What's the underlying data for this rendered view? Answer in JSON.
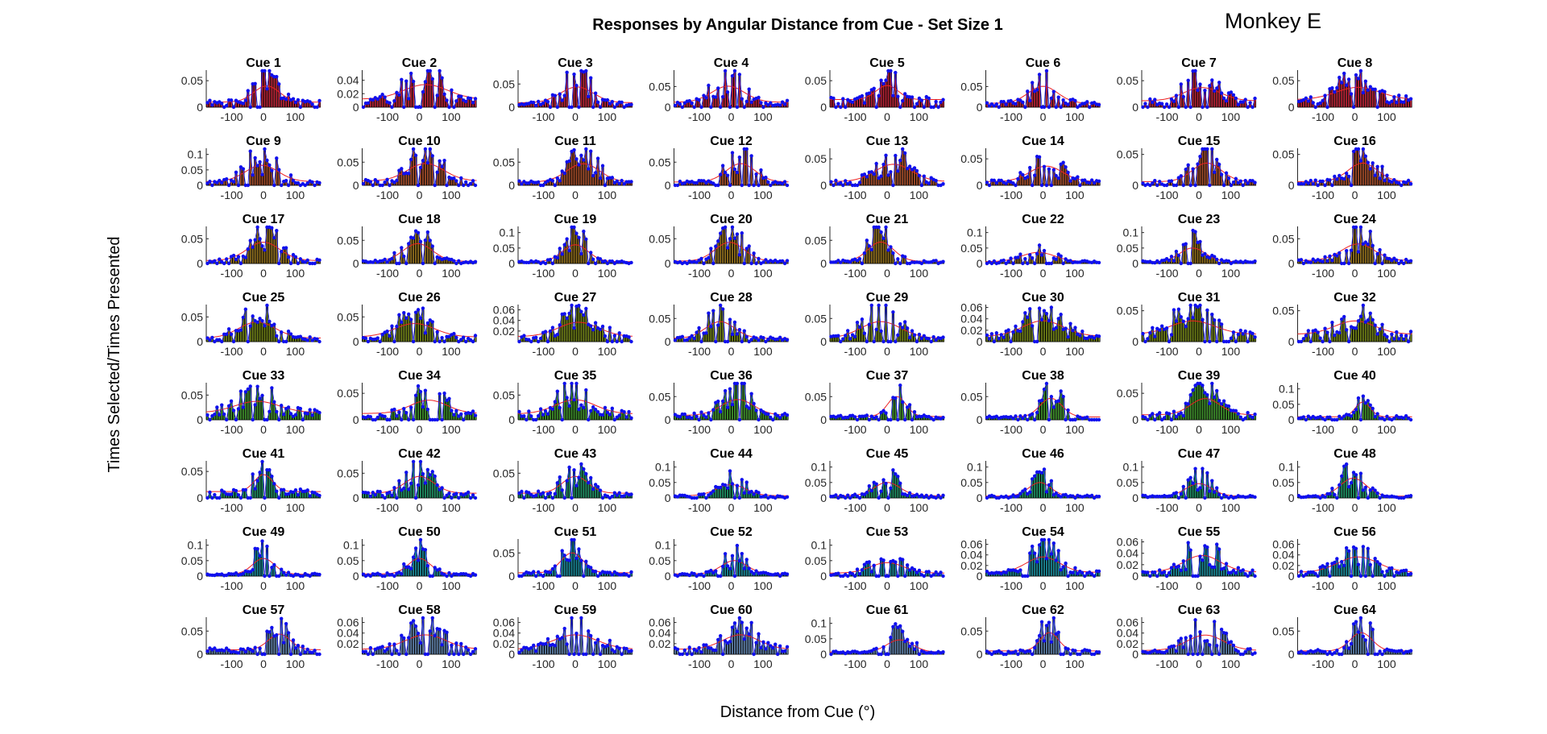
{
  "figure": {
    "title": "Responses by Angular Distance from Cue - Set Size 1",
    "corner_label": "Monkey E",
    "xlabel": "Distance from Cue (°)",
    "ylabel": "Times Selected/Times Presented"
  },
  "colors": {
    "bar_edge": "#000000",
    "marker": "#1010ee",
    "fit_line": "#ee2020",
    "axis": "#262626",
    "palette": [
      "#b22234",
      "#9c4a28",
      "#8a6a1c",
      "#6a7a16",
      "#3c8a2a",
      "#1e8a60",
      "#1a8492",
      "#5a7aa0"
    ]
  },
  "chart_data": {
    "type": "bar",
    "layout": {
      "rows": 8,
      "cols": 8
    },
    "xlim": [
      -180,
      180
    ],
    "xticks": [
      -100,
      0,
      100
    ],
    "panels": [
      {
        "title": "Cue 1",
        "ylim": [
          0,
          0.07
        ],
        "yticks": [
          0,
          0.05
        ],
        "peak": 0.055,
        "center": 10,
        "width": 35,
        "base": 0.008,
        "seed": 1
      },
      {
        "title": "Cue 2",
        "ylim": [
          0,
          0.055
        ],
        "yticks": [
          0,
          0.02,
          0.04
        ],
        "peak": 0.045,
        "center": 20,
        "width": 60,
        "base": 0.01,
        "seed": 2
      },
      {
        "title": "Cue 3",
        "ylim": [
          0,
          0.08
        ],
        "yticks": [
          0,
          0.05
        ],
        "peak": 0.06,
        "center": 5,
        "width": 45,
        "base": 0.008,
        "seed": 3
      },
      {
        "title": "Cue 4",
        "ylim": [
          0,
          0.09
        ],
        "yticks": [
          0,
          0.05
        ],
        "peak": 0.07,
        "center": -10,
        "width": 45,
        "base": 0.01,
        "seed": 4
      },
      {
        "title": "Cue 5",
        "ylim": [
          0,
          0.07
        ],
        "yticks": [
          0,
          0.05
        ],
        "peak": 0.055,
        "center": 0,
        "width": 30,
        "base": 0.012,
        "seed": 5
      },
      {
        "title": "Cue 6",
        "ylim": [
          0,
          0.09
        ],
        "yticks": [
          0,
          0.05
        ],
        "peak": 0.07,
        "center": 0,
        "width": 40,
        "base": 0.008,
        "seed": 6
      },
      {
        "title": "Cue 7",
        "ylim": [
          0,
          0.07
        ],
        "yticks": [
          0,
          0.05
        ],
        "peak": 0.05,
        "center": 10,
        "width": 50,
        "base": 0.01,
        "seed": 7
      },
      {
        "title": "Cue 8",
        "ylim": [
          0,
          0.07
        ],
        "yticks": [
          0,
          0.05
        ],
        "peak": 0.05,
        "center": 10,
        "width": 60,
        "base": 0.012,
        "seed": 8
      },
      {
        "title": "Cue 9",
        "ylim": [
          0,
          0.12
        ],
        "yticks": [
          0,
          0.05,
          0.1
        ],
        "peak": 0.09,
        "center": -5,
        "width": 45,
        "base": 0.01,
        "seed": 9
      },
      {
        "title": "Cue 10",
        "ylim": [
          0,
          0.08
        ],
        "yticks": [
          0,
          0.05
        ],
        "peak": 0.065,
        "center": 20,
        "width": 50,
        "base": 0.008,
        "seed": 10
      },
      {
        "title": "Cue 11",
        "ylim": [
          0,
          0.08
        ],
        "yticks": [
          0,
          0.05
        ],
        "peak": 0.065,
        "center": 25,
        "width": 45,
        "base": 0.006,
        "seed": 11
      },
      {
        "title": "Cue 12",
        "ylim": [
          0,
          0.08
        ],
        "yticks": [
          0,
          0.05
        ],
        "peak": 0.065,
        "center": 30,
        "width": 40,
        "base": 0.006,
        "seed": 12
      },
      {
        "title": "Cue 13",
        "ylim": [
          0,
          0.07
        ],
        "yticks": [
          0,
          0.05
        ],
        "peak": 0.055,
        "center": 20,
        "width": 50,
        "base": 0.006,
        "seed": 13
      },
      {
        "title": "Cue 14",
        "ylim": [
          0,
          0.07
        ],
        "yticks": [
          0,
          0.05
        ],
        "peak": 0.05,
        "center": 10,
        "width": 45,
        "base": 0.006,
        "seed": 14
      },
      {
        "title": "Cue 15",
        "ylim": [
          0,
          0.06
        ],
        "yticks": [
          0,
          0.05
        ],
        "peak": 0.05,
        "center": 25,
        "width": 40,
        "base": 0.005,
        "seed": 15
      },
      {
        "title": "Cue 16",
        "ylim": [
          0,
          0.06
        ],
        "yticks": [
          0,
          0.05
        ],
        "peak": 0.05,
        "center": 25,
        "width": 40,
        "base": 0.005,
        "seed": 16
      },
      {
        "title": "Cue 17",
        "ylim": [
          0,
          0.075
        ],
        "yticks": [
          0,
          0.05
        ],
        "peak": 0.06,
        "center": 0,
        "width": 45,
        "base": 0.005,
        "seed": 17
      },
      {
        "title": "Cue 18",
        "ylim": [
          0,
          0.08
        ],
        "yticks": [
          0,
          0.05
        ],
        "peak": 0.06,
        "center": -5,
        "width": 40,
        "base": 0.004,
        "seed": 18
      },
      {
        "title": "Cue 19",
        "ylim": [
          0,
          0.12
        ],
        "yticks": [
          0,
          0.05,
          0.1
        ],
        "peak": 0.085,
        "center": 0,
        "width": 35,
        "base": 0.005,
        "seed": 19
      },
      {
        "title": "Cue 20",
        "ylim": [
          0,
          0.075
        ],
        "yticks": [
          0,
          0.05
        ],
        "peak": 0.06,
        "center": -5,
        "width": 40,
        "base": 0.004,
        "seed": 20
      },
      {
        "title": "Cue 21",
        "ylim": [
          0,
          0.08
        ],
        "yticks": [
          0,
          0.05
        ],
        "peak": 0.065,
        "center": -20,
        "width": 35,
        "base": 0.004,
        "seed": 21
      },
      {
        "title": "Cue 22",
        "ylim": [
          0,
          0.12
        ],
        "yticks": [
          0,
          0.05,
          0.1
        ],
        "peak": 0.05,
        "center": -15,
        "width": 45,
        "base": 0.005,
        "seed": 22
      },
      {
        "title": "Cue 23",
        "ylim": [
          0,
          0.12
        ],
        "yticks": [
          0,
          0.05,
          0.1
        ],
        "peak": 0.07,
        "center": -20,
        "width": 35,
        "base": 0.005,
        "seed": 23
      },
      {
        "title": "Cue 24",
        "ylim": [
          0,
          0.075
        ],
        "yticks": [
          0,
          0.05
        ],
        "peak": 0.055,
        "center": 10,
        "width": 45,
        "base": 0.005,
        "seed": 24
      },
      {
        "title": "Cue 25",
        "ylim": [
          0,
          0.075
        ],
        "yticks": [
          0,
          0.05
        ],
        "peak": 0.055,
        "center": -20,
        "width": 50,
        "base": 0.006,
        "seed": 25
      },
      {
        "title": "Cue 26",
        "ylim": [
          0,
          0.075
        ],
        "yticks": [
          0,
          0.05
        ],
        "peak": 0.05,
        "center": -15,
        "width": 55,
        "base": 0.008,
        "seed": 26
      },
      {
        "title": "Cue 27",
        "ylim": [
          0,
          0.07
        ],
        "yticks": [
          0.02,
          0.04,
          0.06
        ],
        "peak": 0.05,
        "center": 10,
        "width": 55,
        "base": 0.008,
        "seed": 27
      },
      {
        "title": "Cue 28",
        "ylim": [
          0,
          0.08
        ],
        "yticks": [
          0,
          0.05
        ],
        "peak": 0.06,
        "center": -35,
        "width": 40,
        "base": 0.006,
        "seed": 28
      },
      {
        "title": "Cue 29",
        "ylim": [
          0,
          0.08
        ],
        "yticks": [
          0,
          0.05
        ],
        "peak": 0.06,
        "center": -20,
        "width": 55,
        "base": 0.006,
        "seed": 29
      },
      {
        "title": "Cue 30",
        "ylim": [
          0,
          0.065
        ],
        "yticks": [
          0,
          0.02,
          0.04,
          0.06
        ],
        "peak": 0.05,
        "center": 0,
        "width": 55,
        "base": 0.008,
        "seed": 30
      },
      {
        "title": "Cue 31",
        "ylim": [
          0,
          0.06
        ],
        "yticks": [
          0,
          0.05
        ],
        "peak": 0.045,
        "center": -20,
        "width": 60,
        "base": 0.01,
        "seed": 31
      },
      {
        "title": "Cue 32",
        "ylim": [
          0,
          0.06
        ],
        "yticks": [
          0,
          0.05
        ],
        "peak": 0.045,
        "center": 0,
        "width": 55,
        "base": 0.01,
        "seed": 32
      },
      {
        "title": "Cue 33",
        "ylim": [
          0,
          0.075
        ],
        "yticks": [
          0,
          0.05
        ],
        "peak": 0.05,
        "center": -20,
        "width": 60,
        "base": 0.012,
        "seed": 33
      },
      {
        "title": "Cue 34",
        "ylim": [
          0,
          0.07
        ],
        "yticks": [
          0,
          0.05
        ],
        "peak": 0.05,
        "center": 30,
        "width": 50,
        "base": 0.01,
        "seed": 34
      },
      {
        "title": "Cue 35",
        "ylim": [
          0,
          0.075
        ],
        "yticks": [
          0,
          0.05
        ],
        "peak": 0.055,
        "center": 0,
        "width": 55,
        "base": 0.01,
        "seed": 35
      },
      {
        "title": "Cue 36",
        "ylim": [
          0,
          0.08
        ],
        "yticks": [
          0,
          0.05
        ],
        "peak": 0.06,
        "center": 20,
        "width": 45,
        "base": 0.008,
        "seed": 36
      },
      {
        "title": "Cue 37",
        "ylim": [
          0,
          0.08
        ],
        "yticks": [
          0,
          0.05
        ],
        "peak": 0.07,
        "center": 30,
        "width": 25,
        "base": 0.006,
        "seed": 37
      },
      {
        "title": "Cue 38",
        "ylim": [
          0,
          0.08
        ],
        "yticks": [
          0,
          0.05
        ],
        "peak": 0.065,
        "center": 25,
        "width": 30,
        "base": 0.005,
        "seed": 38
      },
      {
        "title": "Cue 39",
        "ylim": [
          0,
          0.07
        ],
        "yticks": [
          0,
          0.05
        ],
        "peak": 0.055,
        "center": 20,
        "width": 40,
        "base": 0.008,
        "seed": 39
      },
      {
        "title": "Cue 40",
        "ylim": [
          0,
          0.12
        ],
        "yticks": [
          0,
          0.05,
          0.1
        ],
        "peak": 0.08,
        "center": 25,
        "width": 20,
        "base": 0.008,
        "seed": 40
      },
      {
        "title": "Cue 41",
        "ylim": [
          0,
          0.07
        ],
        "yticks": [
          0,
          0.05
        ],
        "peak": 0.06,
        "center": 0,
        "width": 25,
        "base": 0.01,
        "seed": 41
      },
      {
        "title": "Cue 42",
        "ylim": [
          0,
          0.075
        ],
        "yticks": [
          0,
          0.05
        ],
        "peak": 0.06,
        "center": 0,
        "width": 40,
        "base": 0.008,
        "seed": 42
      },
      {
        "title": "Cue 43",
        "ylim": [
          0,
          0.075
        ],
        "yticks": [
          0,
          0.05
        ],
        "peak": 0.06,
        "center": 0,
        "width": 35,
        "base": 0.008,
        "seed": 43
      },
      {
        "title": "Cue 44",
        "ylim": [
          0,
          0.12
        ],
        "yticks": [
          0,
          0.05,
          0.1
        ],
        "peak": 0.06,
        "center": 0,
        "width": 40,
        "base": 0.006,
        "seed": 44
      },
      {
        "title": "Cue 45",
        "ylim": [
          0,
          0.12
        ],
        "yticks": [
          0,
          0.05,
          0.1
        ],
        "peak": 0.07,
        "center": 0,
        "width": 35,
        "base": 0.006,
        "seed": 45
      },
      {
        "title": "Cue 46",
        "ylim": [
          0,
          0.12
        ],
        "yticks": [
          0,
          0.05,
          0.1
        ],
        "peak": 0.07,
        "center": -10,
        "width": 30,
        "base": 0.005,
        "seed": 46
      },
      {
        "title": "Cue 47",
        "ylim": [
          0,
          0.12
        ],
        "yticks": [
          0,
          0.05,
          0.1
        ],
        "peak": 0.065,
        "center": 0,
        "width": 35,
        "base": 0.005,
        "seed": 47
      },
      {
        "title": "Cue 48",
        "ylim": [
          0,
          0.12
        ],
        "yticks": [
          0,
          0.05,
          0.1
        ],
        "peak": 0.09,
        "center": -5,
        "width": 35,
        "base": 0.005,
        "seed": 48
      },
      {
        "title": "Cue 49",
        "ylim": [
          0,
          0.12
        ],
        "yticks": [
          0,
          0.05,
          0.1
        ],
        "peak": 0.08,
        "center": 0,
        "width": 30,
        "base": 0.005,
        "seed": 49
      },
      {
        "title": "Cue 50",
        "ylim": [
          0,
          0.12
        ],
        "yticks": [
          0,
          0.05,
          0.1
        ],
        "peak": 0.08,
        "center": 0,
        "width": 30,
        "base": 0.006,
        "seed": 50
      },
      {
        "title": "Cue 51",
        "ylim": [
          0,
          0.08
        ],
        "yticks": [
          0,
          0.05
        ],
        "peak": 0.07,
        "center": -10,
        "width": 30,
        "base": 0.006,
        "seed": 51
      },
      {
        "title": "Cue 52",
        "ylim": [
          0,
          0.12
        ],
        "yticks": [
          0,
          0.05,
          0.1
        ],
        "peak": 0.07,
        "center": 10,
        "width": 35,
        "base": 0.006,
        "seed": 52
      },
      {
        "title": "Cue 53",
        "ylim": [
          0,
          0.12
        ],
        "yticks": [
          0,
          0.05,
          0.1
        ],
        "peak": 0.06,
        "center": 0,
        "width": 45,
        "base": 0.008,
        "seed": 53
      },
      {
        "title": "Cue 54",
        "ylim": [
          0,
          0.07
        ],
        "yticks": [
          0,
          0.02,
          0.04,
          0.06
        ],
        "peak": 0.05,
        "center": 0,
        "width": 45,
        "base": 0.006,
        "seed": 54
      },
      {
        "title": "Cue 55",
        "ylim": [
          0,
          0.065
        ],
        "yticks": [
          0,
          0.02,
          0.04,
          0.06
        ],
        "peak": 0.05,
        "center": 10,
        "width": 50,
        "base": 0.006,
        "seed": 55
      },
      {
        "title": "Cue 56",
        "ylim": [
          0,
          0.07
        ],
        "yticks": [
          0,
          0.02,
          0.04,
          0.06
        ],
        "peak": 0.05,
        "center": 10,
        "width": 55,
        "base": 0.006,
        "seed": 56
      },
      {
        "title": "Cue 57",
        "ylim": [
          0,
          0.08
        ],
        "yticks": [
          0,
          0.05
        ],
        "peak": 0.06,
        "center": 50,
        "width": 30,
        "base": 0.008,
        "seed": 57
      },
      {
        "title": "Cue 58",
        "ylim": [
          0,
          0.07
        ],
        "yticks": [
          0.02,
          0.04,
          0.06
        ],
        "peak": 0.05,
        "center": 20,
        "width": 55,
        "base": 0.008,
        "seed": 58
      },
      {
        "title": "Cue 59",
        "ylim": [
          0,
          0.07
        ],
        "yticks": [
          0,
          0.02,
          0.04,
          0.06
        ],
        "peak": 0.05,
        "center": 0,
        "width": 60,
        "base": 0.008,
        "seed": 59
      },
      {
        "title": "Cue 60",
        "ylim": [
          0,
          0.07
        ],
        "yticks": [
          0.02,
          0.04,
          0.06
        ],
        "peak": 0.05,
        "center": 30,
        "width": 50,
        "base": 0.008,
        "seed": 60
      },
      {
        "title": "Cue 61",
        "ylim": [
          0,
          0.12
        ],
        "yticks": [
          0,
          0.05,
          0.1
        ],
        "peak": 0.065,
        "center": 40,
        "width": 35,
        "base": 0.006,
        "seed": 61
      },
      {
        "title": "Cue 62",
        "ylim": [
          0,
          0.08
        ],
        "yticks": [
          0,
          0.05
        ],
        "peak": 0.065,
        "center": 20,
        "width": 25,
        "base": 0.006,
        "seed": 62
      },
      {
        "title": "Cue 63",
        "ylim": [
          0,
          0.07
        ],
        "yticks": [
          0,
          0.02,
          0.04,
          0.06
        ],
        "peak": 0.05,
        "center": 20,
        "width": 50,
        "base": 0.006,
        "seed": 63
      },
      {
        "title": "Cue 64",
        "ylim": [
          0,
          0.08
        ],
        "yticks": [
          0,
          0.05
        ],
        "peak": 0.065,
        "center": 20,
        "width": 30,
        "base": 0.006,
        "seed": 64
      }
    ]
  }
}
